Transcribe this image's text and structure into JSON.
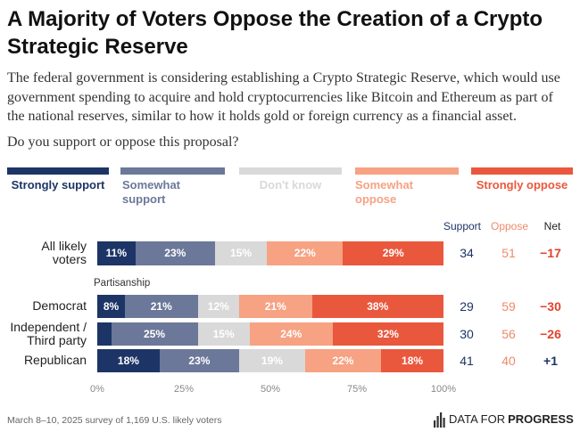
{
  "title": "A Majority of Voters Oppose the Creation of a Crypto Strategic Reserve",
  "subtitle_lines": [
    "The federal government is considering establishing a Crypto Strategic Reserve, which would use",
    "government spending to acquire and hold cryptocurrencies like Bitcoin and Ethereum as part of",
    "the national reserves, similar to how it holds gold or foreign currency as a financial asset."
  ],
  "question": "Do you support or oppose this proposal?",
  "chart_data": {
    "type": "bar",
    "orientation": "horizontal",
    "stacked": true,
    "categories": [
      "All likely voters",
      "Democrat",
      "Independent / Third party",
      "Republican"
    ],
    "group_label": "Partisanship",
    "series": [
      {
        "name": "Strongly support",
        "color": "#1c3566",
        "values": [
          11,
          8,
          4,
          18
        ],
        "value_labels": [
          "11%",
          "8%",
          "",
          "18%"
        ]
      },
      {
        "name": "Somewhat support",
        "color": "#6b7899",
        "values": [
          23,
          21,
          25,
          23
        ],
        "value_labels": [
          "23%",
          "21%",
          "25%",
          "23%"
        ]
      },
      {
        "name": "Don't know",
        "color": "#d9d9d9",
        "values": [
          15,
          12,
          15,
          19
        ],
        "value_labels": [
          "15%",
          "12%",
          "15%",
          "19%"
        ]
      },
      {
        "name": "Somewhat oppose",
        "color": "#f6a283",
        "values": [
          22,
          21,
          24,
          22
        ],
        "value_labels": [
          "22%",
          "21%",
          "24%",
          "22%"
        ]
      },
      {
        "name": "Strongly oppose",
        "color": "#e9583d",
        "values": [
          29,
          38,
          32,
          18
        ],
        "value_labels": [
          "29%",
          "38%",
          "32%",
          "18%"
        ]
      }
    ],
    "xlim": [
      0,
      100
    ],
    "x_ticks": [
      0,
      25,
      50,
      75,
      100
    ],
    "x_tick_labels": [
      "0%",
      "25%",
      "50%",
      "75%",
      "100%"
    ],
    "grid": false,
    "legend_position": "top",
    "summary_columns": [
      {
        "header": "Support",
        "color": "#1c3566",
        "values": [
          34,
          29,
          30,
          41
        ]
      },
      {
        "header": "Oppose",
        "color": "#ef8a68",
        "values": [
          51,
          59,
          56,
          40
        ]
      },
      {
        "header": "Net",
        "color": "#222222",
        "values": [
          "−17",
          "−30",
          "−26",
          "+1"
        ],
        "value_colors": [
          "#e2432b",
          "#e2432b",
          "#e2432b",
          "#1c3566"
        ]
      }
    ]
  },
  "footer": {
    "source": "March 8–10, 2025 survey of 1,169 U.S. likely voters"
  },
  "logo": {
    "text_regular": "DATA FOR",
    "text_bold": "PROGRESS",
    "icon": "bar-chart-icon"
  }
}
